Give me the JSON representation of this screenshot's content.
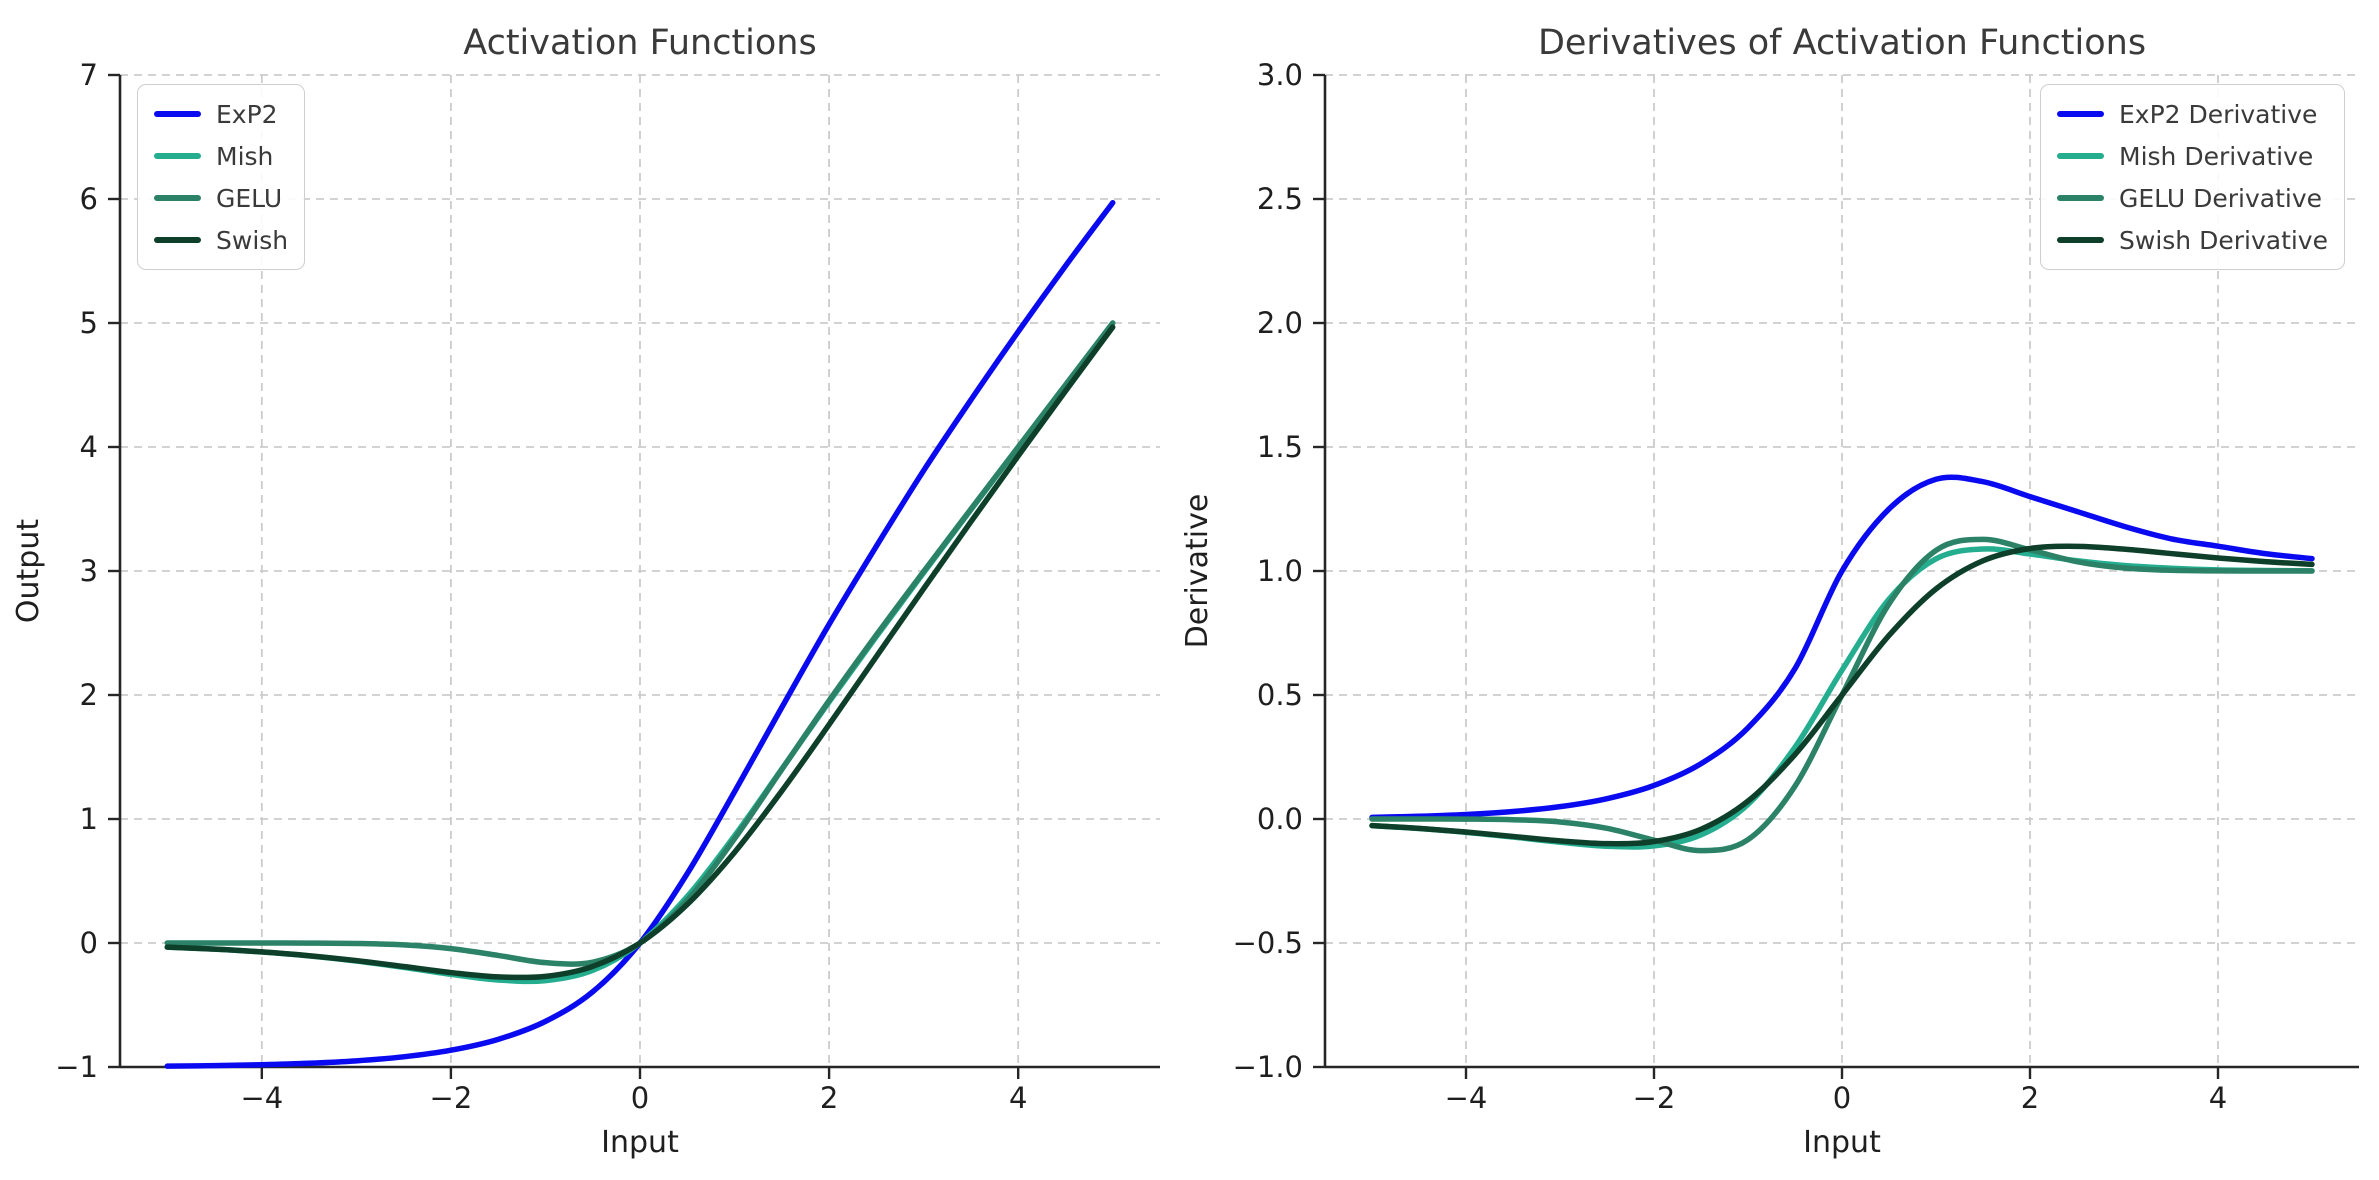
{
  "figure": {
    "background": "#ffffff",
    "grid_color": "#cbcbcb",
    "spine_color": "#262626",
    "text_color": "#1f1f1f",
    "title_color": "#3a3a3a"
  },
  "chart_data": [
    {
      "type": "line",
      "title": "Activation Functions",
      "xlabel": "Input",
      "ylabel": "Output",
      "xlim": [
        -5.5,
        5.5
      ],
      "ylim": [
        -1,
        7
      ],
      "xticks": [
        -4,
        -2,
        0,
        2,
        4
      ],
      "xtick_labels": [
        "−4",
        "−2",
        "0",
        "2",
        "4"
      ],
      "yticks": [
        -1,
        0,
        1,
        2,
        3,
        4,
        5,
        6,
        7
      ],
      "ytick_labels": [
        "−1",
        "0",
        "1",
        "2",
        "3",
        "4",
        "5",
        "6",
        "7"
      ],
      "grid": true,
      "legend_position": "upper-left",
      "x": [
        -5,
        -4.5,
        -4,
        -3.5,
        -3,
        -2.5,
        -2,
        -1.5,
        -1,
        -0.5,
        0,
        0.5,
        1,
        1.5,
        2,
        2.5,
        3,
        3.5,
        4,
        4.5,
        5
      ],
      "series": [
        {
          "name": "ExP2",
          "color": "#0a0af0",
          "values": [
            -0.9933,
            -0.9889,
            -0.9817,
            -0.9698,
            -0.9502,
            -0.9179,
            -0.8647,
            -0.7769,
            -0.6321,
            -0.3935,
            0,
            0.56,
            1.22,
            1.9,
            2.57,
            3.2,
            3.81,
            4.38,
            4.93,
            5.46,
            5.97
          ]
        },
        {
          "name": "Mish",
          "color": "#25ad8f",
          "values": [
            -0.0336,
            -0.0495,
            -0.0726,
            -0.1041,
            -0.1456,
            -0.1968,
            -0.2525,
            -0.2981,
            -0.3034,
            -0.2207,
            0,
            0.3751,
            0.8651,
            1.4031,
            1.9444,
            2.4714,
            2.986,
            3.494,
            3.9974,
            4.4989,
            4.9996
          ]
        },
        {
          "name": "GELU",
          "color": "#2b8266",
          "values": [
            0,
            0,
            -0.0001,
            -0.0008,
            -0.004,
            -0.0155,
            -0.0455,
            -0.1002,
            -0.1587,
            -0.1543,
            0,
            0.3457,
            0.8413,
            1.3998,
            1.9545,
            2.4845,
            2.996,
            3.4992,
            3.9999,
            4.5,
            5.0
          ]
        },
        {
          "name": "Swish",
          "color": "#0e3f2a",
          "values": [
            -0.0335,
            -0.0494,
            -0.072,
            -0.1026,
            -0.1423,
            -0.1897,
            -0.2384,
            -0.2736,
            -0.2689,
            -0.1888,
            0,
            0.3112,
            0.7311,
            1.2264,
            1.7616,
            2.3104,
            2.8577,
            3.3974,
            3.928,
            4.4506,
            4.9665
          ]
        }
      ]
    },
    {
      "type": "line",
      "title": "Derivatives of Activation Functions",
      "xlabel": "Input",
      "ylabel": "Derivative",
      "xlim": [
        -5.5,
        5.5
      ],
      "ylim": [
        -1,
        3
      ],
      "xticks": [
        -4,
        -2,
        0,
        2,
        4
      ],
      "xtick_labels": [
        "−4",
        "−2",
        "0",
        "2",
        "4"
      ],
      "yticks": [
        -1,
        -0.5,
        0,
        0.5,
        1,
        1.5,
        2,
        2.5,
        3
      ],
      "ytick_labels": [
        "−1.0",
        "−0.5",
        "0.0",
        "0.5",
        "1.0",
        "1.5",
        "2.0",
        "2.5",
        "3.0"
      ],
      "grid": true,
      "legend_position": "upper-right",
      "x": [
        -5,
        -4.5,
        -4,
        -3.5,
        -3,
        -2.5,
        -2,
        -1.5,
        -1,
        -0.5,
        0,
        0.5,
        1,
        1.5,
        2,
        2.5,
        3,
        3.5,
        4,
        4.5,
        5
      ],
      "series": [
        {
          "name": "ExP2 Derivative",
          "color": "#0a0af0",
          "values": [
            0.0067,
            0.0111,
            0.0183,
            0.0302,
            0.0498,
            0.0821,
            0.1353,
            0.2231,
            0.3679,
            0.6065,
            1.0,
            1.25,
            1.37,
            1.36,
            1.3,
            1.24,
            1.18,
            1.13,
            1.1,
            1.07,
            1.05
          ]
        },
        {
          "name": "Mish Derivative",
          "color": "#25ad8f",
          "values": [
            -0.0267,
            -0.0385,
            -0.0538,
            -0.0728,
            -0.0934,
            -0.1097,
            -0.1083,
            -0.0641,
            0.0592,
            0.2895,
            0.6,
            0.8863,
            1.049,
            1.0887,
            1.0688,
            1.0412,
            1.022,
            1.0112,
            1.0045,
            1.002,
            1.0007
          ]
        },
        {
          "name": "GELU Derivative",
          "color": "#2b8266",
          "values": [
            0,
            -0.0001,
            -0.0005,
            -0.0028,
            -0.0119,
            -0.0376,
            -0.0852,
            -0.1275,
            -0.0833,
            0.1325,
            0.5,
            0.8675,
            1.0833,
            1.1275,
            1.0852,
            1.0376,
            1.0119,
            1.0028,
            1.0005,
            1.0001,
            1.0
          ]
        },
        {
          "name": "Swish Derivative",
          "color": "#0e3f2a",
          "values": [
            -0.0266,
            -0.0379,
            -0.0526,
            -0.0703,
            -0.0881,
            -0.0994,
            -0.0908,
            -0.0413,
            0.0723,
            0.26,
            0.5,
            0.74,
            0.9277,
            1.0413,
            1.0908,
            1.0994,
            1.0881,
            1.0703,
            1.0526,
            1.0379,
            1.0266
          ]
        }
      ]
    }
  ]
}
